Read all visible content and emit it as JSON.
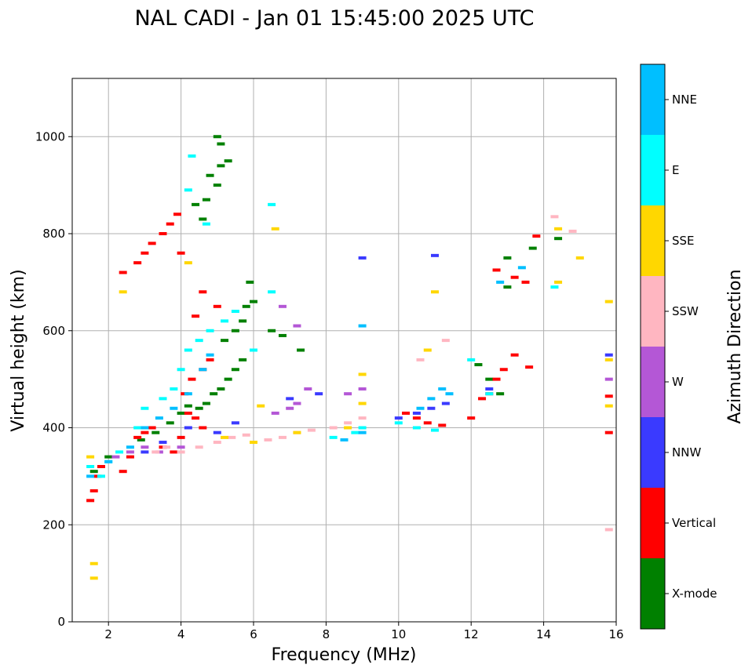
{
  "chart_data": {
    "type": "scatter",
    "title": "NAL CADI - Jan 01 15:45:00 2025 UTC",
    "xlabel": "Frequency (MHz)",
    "ylabel": "Virtual height (km)",
    "xlim": [
      1,
      16
    ],
    "ylim": [
      0,
      1120
    ],
    "xticks": [
      2,
      4,
      6,
      8,
      10,
      12,
      14,
      16
    ],
    "yticks": [
      0,
      200,
      400,
      600,
      800,
      1000
    ],
    "grid": true,
    "colorbar": {
      "title": "Azimuth Direction",
      "categories": [
        {
          "name": "X-mode",
          "color": "#008000"
        },
        {
          "name": "Vertical",
          "color": "#ff0000"
        },
        {
          "name": "NNW",
          "color": "#3a3aff"
        },
        {
          "name": "W",
          "color": "#b457d6"
        },
        {
          "name": "SSW",
          "color": "#ffb6c1"
        },
        {
          "name": "SSE",
          "color": "#ffd700"
        },
        {
          "name": "E",
          "color": "#00ffff"
        },
        {
          "name": "NNE",
          "color": "#00bfff"
        }
      ]
    },
    "series": [
      {
        "name": "X-mode",
        "points": [
          [
            1.6,
            310
          ],
          [
            2.0,
            340
          ],
          [
            2.9,
            375
          ],
          [
            3.3,
            390
          ],
          [
            3.7,
            410
          ],
          [
            4.0,
            430
          ],
          [
            4.2,
            445
          ],
          [
            4.5,
            440
          ],
          [
            4.7,
            450
          ],
          [
            4.9,
            470
          ],
          [
            5.1,
            480
          ],
          [
            5.3,
            500
          ],
          [
            5.5,
            520
          ],
          [
            5.7,
            540
          ],
          [
            5.2,
            580
          ],
          [
            5.5,
            600
          ],
          [
            5.7,
            620
          ],
          [
            5.8,
            650
          ],
          [
            5.9,
            700
          ],
          [
            5.0,
            900
          ],
          [
            5.1,
            940
          ],
          [
            5.3,
            950
          ],
          [
            5.0,
            1000
          ],
          [
            5.1,
            985
          ],
          [
            4.7,
            870
          ],
          [
            4.4,
            860
          ],
          [
            4.8,
            920
          ],
          [
            4.6,
            830
          ],
          [
            6.5,
            600
          ],
          [
            6.8,
            590
          ],
          [
            7.3,
            560
          ],
          [
            6.0,
            660
          ],
          [
            12.2,
            530
          ],
          [
            12.5,
            500
          ],
          [
            12.8,
            470
          ],
          [
            13.0,
            690
          ],
          [
            13.0,
            750
          ],
          [
            13.7,
            770
          ],
          [
            14.4,
            790
          ]
        ]
      },
      {
        "name": "Vertical",
        "points": [
          [
            1.5,
            250
          ],
          [
            1.6,
            270
          ],
          [
            1.7,
            300
          ],
          [
            1.8,
            320
          ],
          [
            2.4,
            310
          ],
          [
            2.6,
            340
          ],
          [
            2.8,
            380
          ],
          [
            3.0,
            390
          ],
          [
            3.2,
            400
          ],
          [
            3.5,
            360
          ],
          [
            3.8,
            350
          ],
          [
            4.0,
            380
          ],
          [
            4.2,
            430
          ],
          [
            4.4,
            420
          ],
          [
            4.6,
            400
          ],
          [
            4.1,
            470
          ],
          [
            4.3,
            500
          ],
          [
            4.6,
            520
          ],
          [
            4.8,
            540
          ],
          [
            2.4,
            720
          ],
          [
            2.8,
            740
          ],
          [
            3.0,
            760
          ],
          [
            3.2,
            780
          ],
          [
            3.5,
            800
          ],
          [
            3.7,
            820
          ],
          [
            3.9,
            840
          ],
          [
            4.0,
            760
          ],
          [
            4.4,
            630
          ],
          [
            4.6,
            680
          ],
          [
            5.0,
            650
          ],
          [
            10.2,
            430
          ],
          [
            10.5,
            420
          ],
          [
            10.8,
            410
          ],
          [
            11.2,
            405
          ],
          [
            12.0,
            420
          ],
          [
            12.3,
            460
          ],
          [
            12.5,
            470
          ],
          [
            12.7,
            500
          ],
          [
            12.9,
            520
          ],
          [
            13.2,
            550
          ],
          [
            13.6,
            525
          ],
          [
            12.7,
            725
          ],
          [
            13.2,
            710
          ],
          [
            13.5,
            700
          ],
          [
            13.8,
            795
          ],
          [
            15.8,
            390
          ],
          [
            15.8,
            465
          ]
        ]
      },
      {
        "name": "NNW",
        "points": [
          [
            3.0,
            350
          ],
          [
            3.5,
            370
          ],
          [
            4.2,
            400
          ],
          [
            5.0,
            390
          ],
          [
            5.5,
            410
          ],
          [
            7.0,
            460
          ],
          [
            7.8,
            470
          ],
          [
            10.0,
            420
          ],
          [
            10.5,
            430
          ],
          [
            10.9,
            440
          ],
          [
            11.3,
            450
          ],
          [
            11.0,
            755
          ],
          [
            9.0,
            750
          ],
          [
            12.5,
            480
          ],
          [
            15.8,
            550
          ]
        ]
      },
      {
        "name": "W",
        "points": [
          [
            2.2,
            340
          ],
          [
            2.6,
            350
          ],
          [
            3.0,
            360
          ],
          [
            3.4,
            350
          ],
          [
            4.0,
            360
          ],
          [
            6.6,
            430
          ],
          [
            7.0,
            440
          ],
          [
            7.2,
            450
          ],
          [
            7.5,
            480
          ],
          [
            8.6,
            470
          ],
          [
            9.0,
            480
          ],
          [
            6.8,
            650
          ],
          [
            7.2,
            610
          ],
          [
            15.8,
            500
          ]
        ]
      },
      {
        "name": "SSW",
        "points": [
          [
            3.3,
            350
          ],
          [
            3.6,
            360
          ],
          [
            4.0,
            350
          ],
          [
            4.5,
            360
          ],
          [
            5.0,
            370
          ],
          [
            5.4,
            380
          ],
          [
            5.8,
            385
          ],
          [
            6.4,
            375
          ],
          [
            6.8,
            380
          ],
          [
            7.2,
            390
          ],
          [
            7.6,
            395
          ],
          [
            8.2,
            400
          ],
          [
            8.6,
            410
          ],
          [
            9.0,
            420
          ],
          [
            10.6,
            540
          ],
          [
            11.3,
            580
          ],
          [
            14.3,
            835
          ],
          [
            14.8,
            805
          ],
          [
            15.8,
            190
          ]
        ]
      },
      {
        "name": "SSE",
        "points": [
          [
            1.6,
            90
          ],
          [
            1.6,
            120
          ],
          [
            1.5,
            340
          ],
          [
            2.4,
            680
          ],
          [
            4.2,
            740
          ],
          [
            5.2,
            380
          ],
          [
            6.0,
            370
          ],
          [
            6.2,
            445
          ],
          [
            6.6,
            810
          ],
          [
            7.2,
            390
          ],
          [
            8.6,
            400
          ],
          [
            9.0,
            450
          ],
          [
            9.0,
            510
          ],
          [
            10.8,
            560
          ],
          [
            11.0,
            680
          ],
          [
            14.4,
            810
          ],
          [
            14.4,
            700
          ],
          [
            15.0,
            750
          ],
          [
            15.8,
            445
          ],
          [
            15.8,
            540
          ],
          [
            15.8,
            660
          ]
        ]
      },
      {
        "name": "E",
        "points": [
          [
            1.5,
            320
          ],
          [
            1.8,
            300
          ],
          [
            2.0,
            330
          ],
          [
            2.3,
            350
          ],
          [
            2.8,
            400
          ],
          [
            3.0,
            440
          ],
          [
            3.5,
            460
          ],
          [
            3.8,
            480
          ],
          [
            4.0,
            520
          ],
          [
            4.2,
            560
          ],
          [
            4.5,
            580
          ],
          [
            4.8,
            600
          ],
          [
            5.2,
            620
          ],
          [
            5.5,
            640
          ],
          [
            6.0,
            560
          ],
          [
            6.5,
            680
          ],
          [
            4.3,
            960
          ],
          [
            4.7,
            820
          ],
          [
            4.2,
            890
          ],
          [
            6.5,
            860
          ],
          [
            8.2,
            380
          ],
          [
            8.8,
            390
          ],
          [
            9.0,
            400
          ],
          [
            10.0,
            410
          ],
          [
            10.5,
            400
          ],
          [
            11.0,
            395
          ],
          [
            12.0,
            540
          ],
          [
            12.5,
            470
          ],
          [
            14.3,
            690
          ]
        ]
      },
      {
        "name": "NNE",
        "points": [
          [
            1.5,
            300
          ],
          [
            2.0,
            330
          ],
          [
            2.6,
            360
          ],
          [
            3.0,
            400
          ],
          [
            3.4,
            420
          ],
          [
            3.8,
            440
          ],
          [
            4.2,
            470
          ],
          [
            4.6,
            520
          ],
          [
            4.8,
            550
          ],
          [
            8.5,
            375
          ],
          [
            9.0,
            390
          ],
          [
            9.0,
            610
          ],
          [
            10.6,
            440
          ],
          [
            10.9,
            460
          ],
          [
            11.2,
            480
          ],
          [
            11.4,
            470
          ],
          [
            12.8,
            700
          ],
          [
            13.4,
            730
          ]
        ]
      }
    ]
  }
}
